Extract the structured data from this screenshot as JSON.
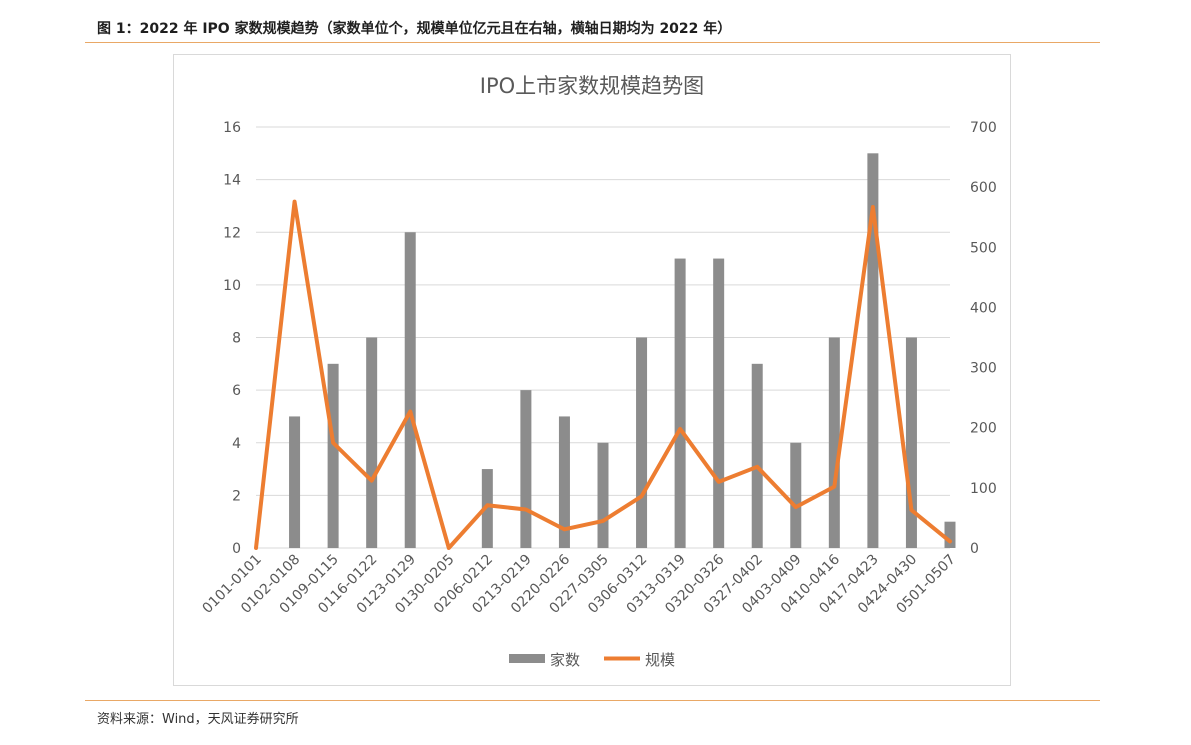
{
  "figure_caption": "图 1：2022 年 IPO 家数规模趋势（家数单位个，规模单位亿元且在右轴，横轴日期均为 2022 年）",
  "source_note": "资料来源：Wind，天风证券研究所",
  "colors": {
    "bar": "#8c8c8c",
    "line": "#ed7d31",
    "grid": "#d9d9d9",
    "rule": "#e9a866",
    "axis_text": "#595959"
  },
  "chart_data": {
    "type": "bar",
    "title": "IPO上市家数规模趋势图",
    "categories": [
      "0101-0101",
      "0102-0108",
      "0109-0115",
      "0116-0122",
      "0123-0129",
      "0130-0205",
      "0206-0212",
      "0213-0219",
      "0220-0226",
      "0227-0305",
      "0306-0312",
      "0313-0319",
      "0320-0326",
      "0327-0402",
      "0403-0409",
      "0410-0416",
      "0417-0423",
      "0424-0430",
      "0501-0507"
    ],
    "series": [
      {
        "name": "家数",
        "type": "bar",
        "axis": "left",
        "values": [
          0,
          5,
          7,
          8,
          12,
          0,
          3,
          6,
          5,
          4,
          8,
          11,
          11,
          7,
          4,
          8,
          15,
          8,
          1
        ]
      },
      {
        "name": "规模",
        "type": "line",
        "axis": "right",
        "values": [
          0,
          576,
          175,
          112,
          227,
          0,
          71,
          64,
          31,
          45,
          86,
          198,
          110,
          135,
          68,
          102,
          567,
          63,
          11
        ]
      }
    ],
    "y_left": {
      "min": 0,
      "max": 16,
      "ticks": [
        "0",
        "2",
        "4",
        "6",
        "8",
        "10",
        "12",
        "14",
        "16"
      ]
    },
    "y_right": {
      "min": 0,
      "max": 700,
      "ticks": [
        "0",
        "100",
        "200",
        "300",
        "400",
        "500",
        "600",
        "700"
      ]
    },
    "grid": true,
    "legend": "bottom"
  }
}
